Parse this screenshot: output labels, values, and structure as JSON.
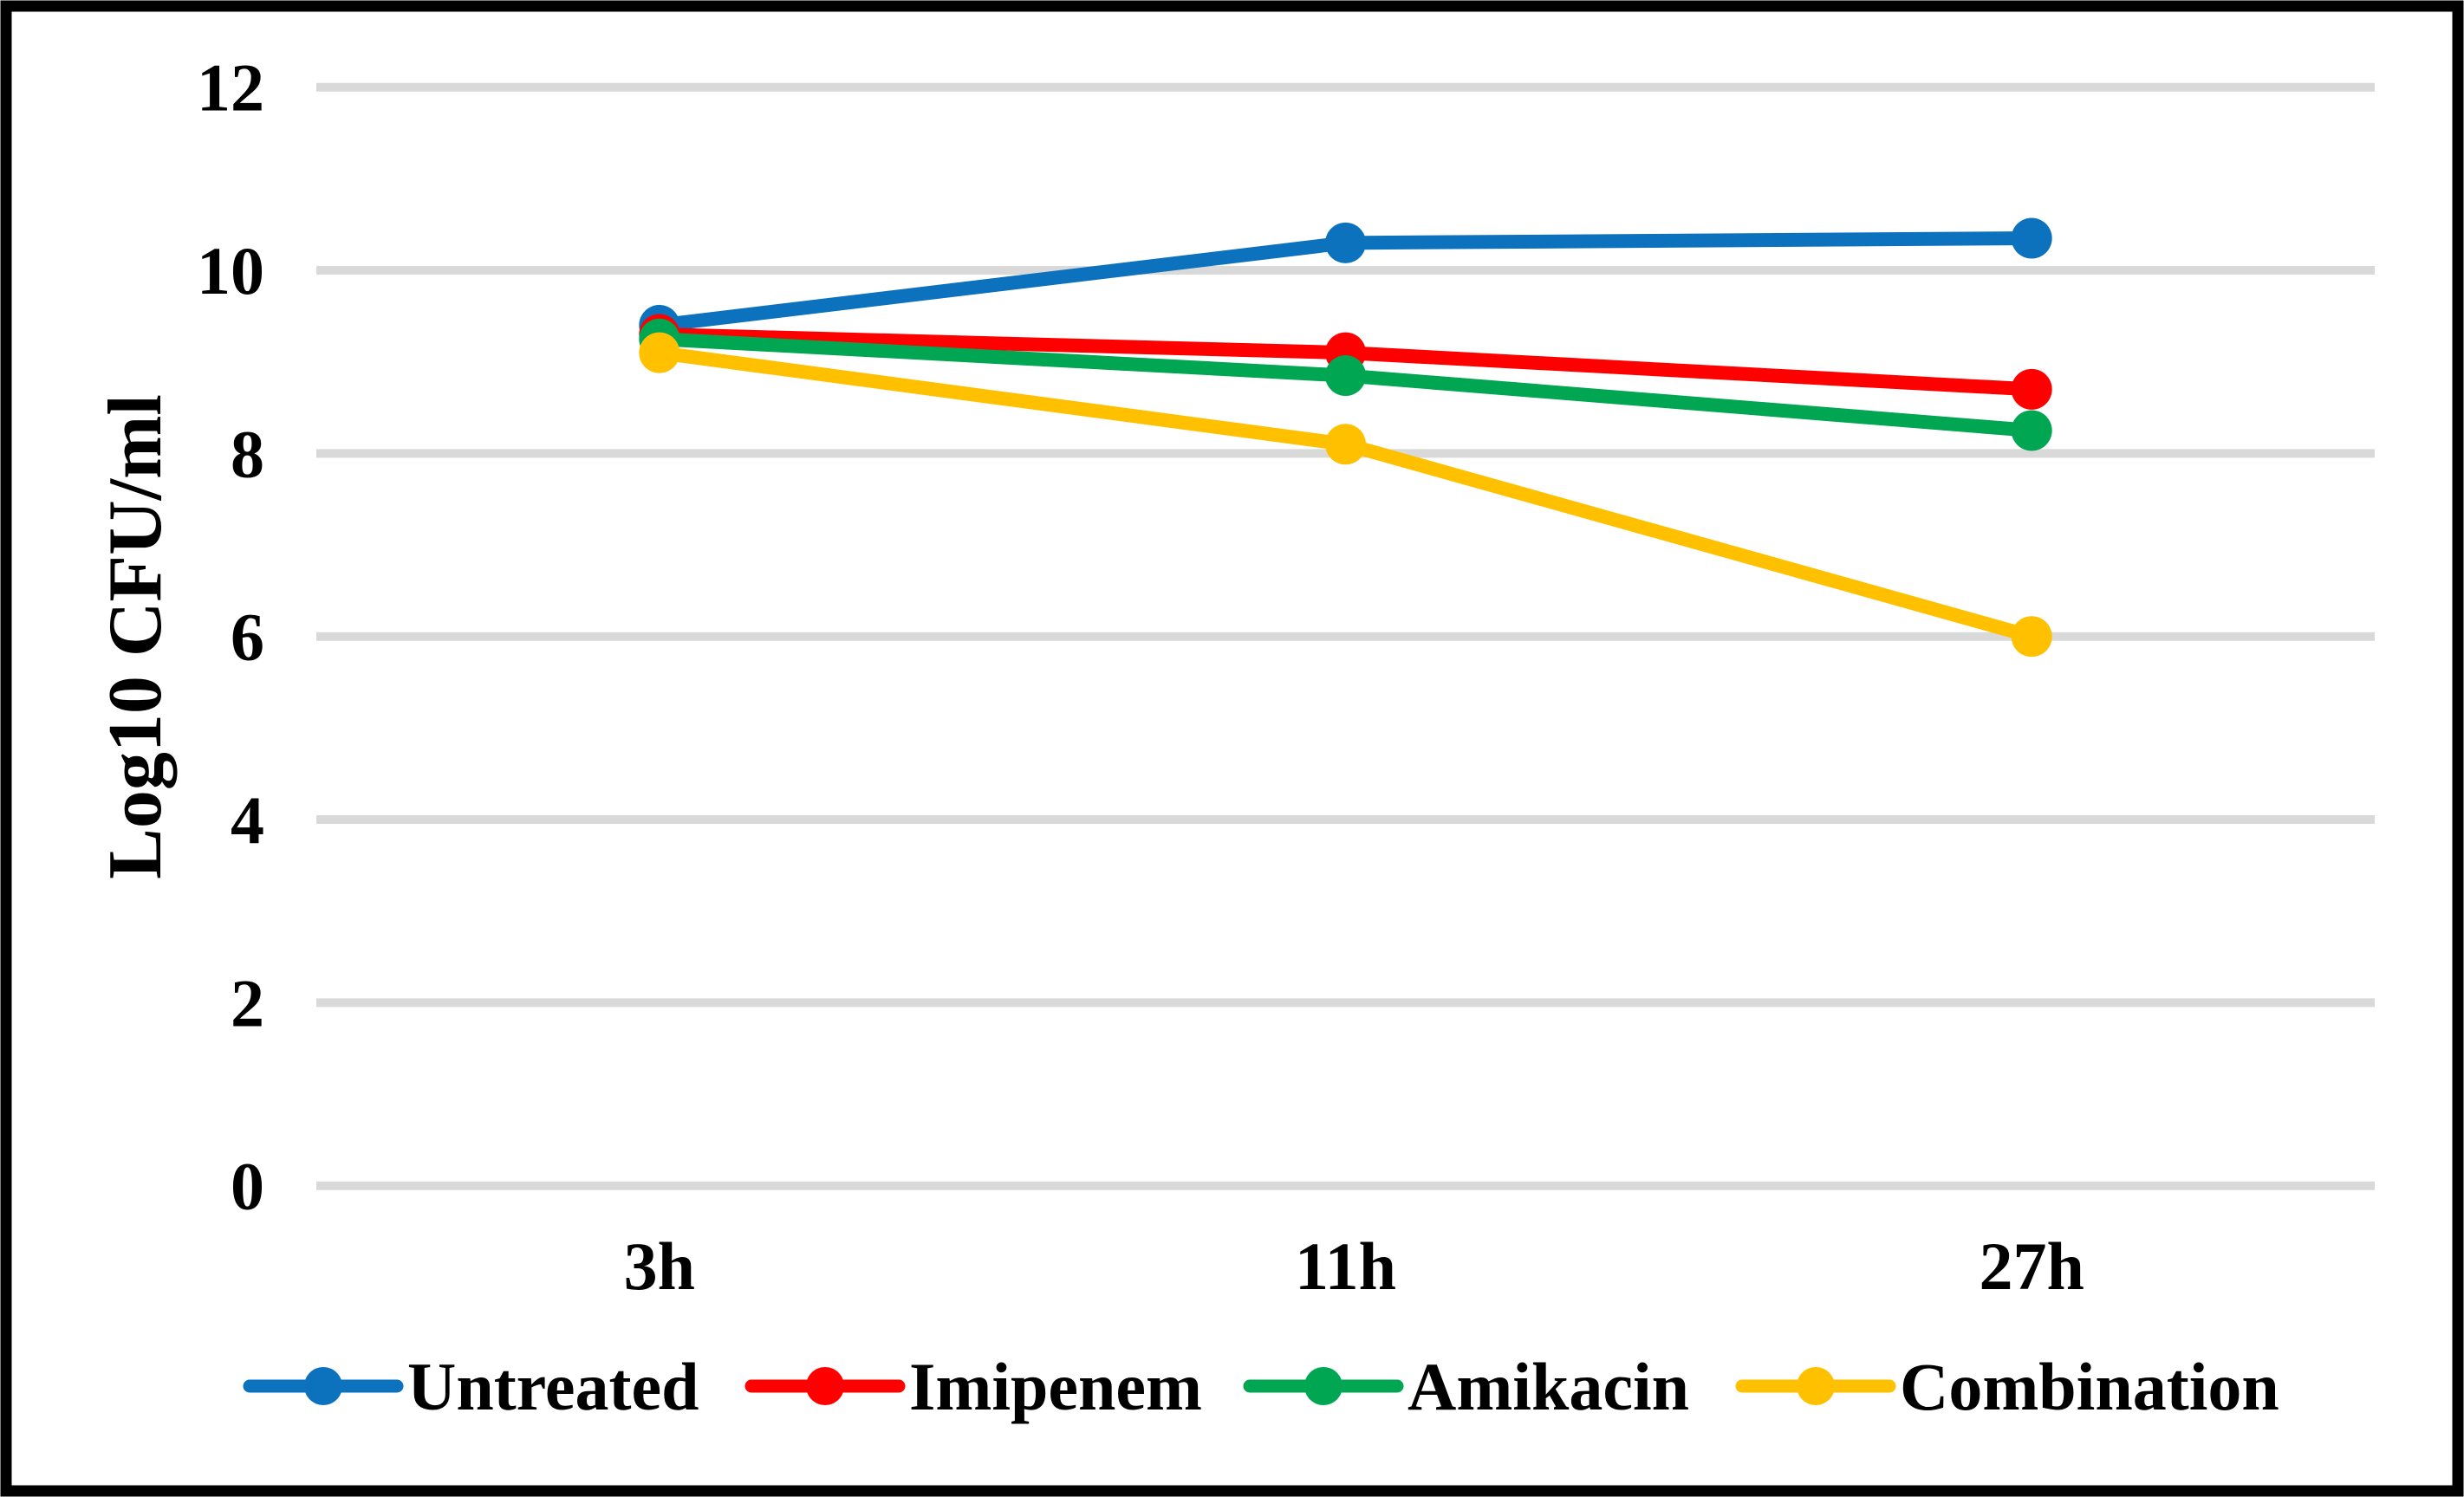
{
  "chart_data": {
    "type": "line",
    "title": "",
    "ylabel": "Log10 CFU/ml",
    "xlabel": "",
    "categories": [
      "3h",
      "11h",
      "27h"
    ],
    "series": [
      {
        "name": "Untreated",
        "color": "#0d72bd",
        "values": [
          9.4,
          10.3,
          10.35
        ]
      },
      {
        "name": "Imipenem",
        "color": "#fe0000",
        "values": [
          9.3,
          9.1,
          8.7
        ]
      },
      {
        "name": "Amikacin",
        "color": "#00a651",
        "values": [
          9.25,
          8.85,
          8.25
        ]
      },
      {
        "name": "Combination",
        "color": "#ffc000",
        "values": [
          9.1,
          8.1,
          6.0
        ]
      }
    ],
    "y_axis": {
      "min": 0,
      "max": 12,
      "tick_step": 2,
      "ticks": [
        "0",
        "2",
        "4",
        "6",
        "8",
        "10",
        "12"
      ],
      "gridlines": true,
      "gridline_color": "#d9d9d9"
    },
    "legend_position": "bottom",
    "marker": "circle",
    "border_color": "#000000",
    "background_color": "#ffffff"
  }
}
